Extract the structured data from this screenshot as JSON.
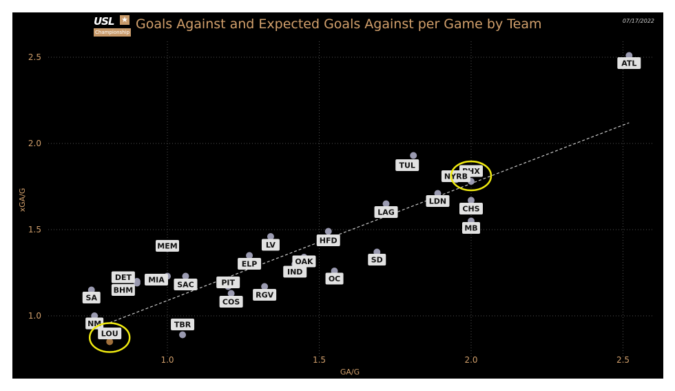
{
  "header": {
    "title": "Goals Against and Expected Goals Against per Game by Team",
    "date": "07/17/2022",
    "logo_text": "USL",
    "logo_sub": "Championship"
  },
  "colors": {
    "background": "#000000",
    "accent": "#d2a06c",
    "point": "#9a9ab0",
    "highlight_point": "#a0703c",
    "highlight_ring": "#f0ea10",
    "trend": "#cccccc",
    "label_box": "#e2e2e2"
  },
  "chart_data": {
    "type": "scatter",
    "title": "Goals Against and Expected Goals Against per Game by Team",
    "xlabel": "GA/G",
    "ylabel": "xGA/G",
    "xlim": [
      0.7,
      2.6
    ],
    "ylim": [
      0.83,
      2.6
    ],
    "xticks": [
      "1.0",
      "1.5",
      "2.0",
      "2.5"
    ],
    "yticks": [
      "1.0",
      "1.5",
      "2.0",
      "2.5"
    ],
    "grid": "dotted",
    "trendline": {
      "x": [
        0.81,
        2.52
      ],
      "y": [
        0.96,
        2.12
      ]
    },
    "points": [
      {
        "team": "ATL",
        "x": 2.52,
        "y": 2.51
      },
      {
        "team": "TUL",
        "x": 1.81,
        "y": 1.93
      },
      {
        "team": "PHX",
        "x": 2.0,
        "y": 1.78,
        "highlight": true
      },
      {
        "team": "NYRB",
        "x": 1.95,
        "y": 1.79
      },
      {
        "team": "LDN",
        "x": 1.89,
        "y": 1.71
      },
      {
        "team": "CHS",
        "x": 2.0,
        "y": 1.67
      },
      {
        "team": "MB",
        "x": 2.0,
        "y": 1.55
      },
      {
        "team": "LAG",
        "x": 1.72,
        "y": 1.65
      },
      {
        "team": "SD",
        "x": 1.69,
        "y": 1.37
      },
      {
        "team": "HFD",
        "x": 1.53,
        "y": 1.49
      },
      {
        "team": "OAK",
        "x": 1.45,
        "y": 1.34
      },
      {
        "team": "IND",
        "x": 1.42,
        "y": 1.3
      },
      {
        "team": "OC",
        "x": 1.55,
        "y": 1.26
      },
      {
        "team": "LV",
        "x": 1.34,
        "y": 1.46
      },
      {
        "team": "ELP",
        "x": 1.27,
        "y": 1.35
      },
      {
        "team": "RGV",
        "x": 1.32,
        "y": 1.17
      },
      {
        "team": "PIT",
        "x": 1.2,
        "y": 1.17
      },
      {
        "team": "COS",
        "x": 1.21,
        "y": 1.13
      },
      {
        "team": "MEM",
        "x": 1.0,
        "y": 1.39
      },
      {
        "team": "SAC",
        "x": 1.06,
        "y": 1.23
      },
      {
        "team": "DET",
        "x": 0.9,
        "y": 1.2
      },
      {
        "team": "MIA",
        "x": 1.0,
        "y": 1.23
      },
      {
        "team": "BHM",
        "x": 0.9,
        "y": 1.19
      },
      {
        "team": "TBR",
        "x": 1.05,
        "y": 0.89
      },
      {
        "team": "SA",
        "x": 0.75,
        "y": 1.15
      },
      {
        "team": "NM",
        "x": 0.76,
        "y": 1.0
      },
      {
        "team": "LOU",
        "x": 0.81,
        "y": 0.85,
        "highlight": true
      }
    ]
  }
}
